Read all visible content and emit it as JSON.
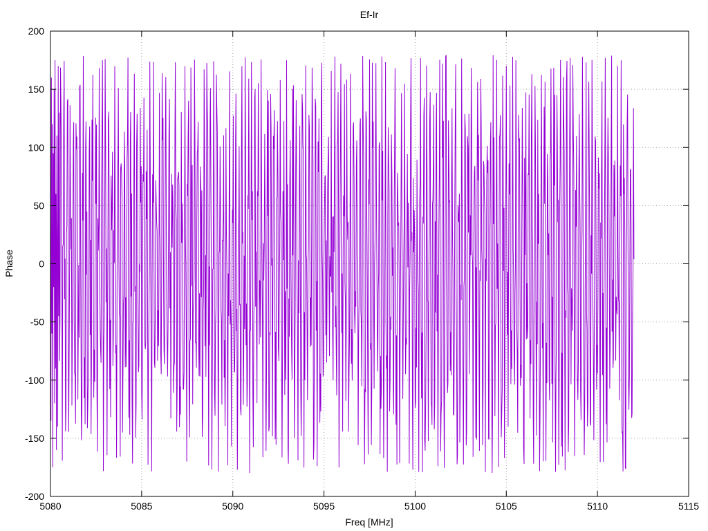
{
  "chart_data": {
    "type": "line",
    "title": "Ef-Ir",
    "xlabel": "Freq [MHz]",
    "ylabel": "Phase",
    "xlim": [
      5080,
      5115
    ],
    "ylim": [
      -200,
      200
    ],
    "x_ticks": [
      5080,
      5085,
      5090,
      5095,
      5100,
      5105,
      5110,
      5115
    ],
    "y_ticks": [
      -200,
      -150,
      -100,
      -50,
      0,
      50,
      100,
      150,
      200
    ],
    "grid": true,
    "legend": "none",
    "series": [
      {
        "color": "#9400d3",
        "x_start": 5080,
        "x_end": 5112,
        "x_step": 0.025,
        "points": 1281,
        "envelope": [
          -180,
          180
        ],
        "values_sample": [
          30,
          -135,
          160,
          -60,
          120,
          -175,
          95,
          -20,
          150,
          -120,
          175,
          -90,
          60,
          -160,
          110,
          10,
          -140,
          170,
          -45,
          130
        ]
      }
    ]
  }
}
